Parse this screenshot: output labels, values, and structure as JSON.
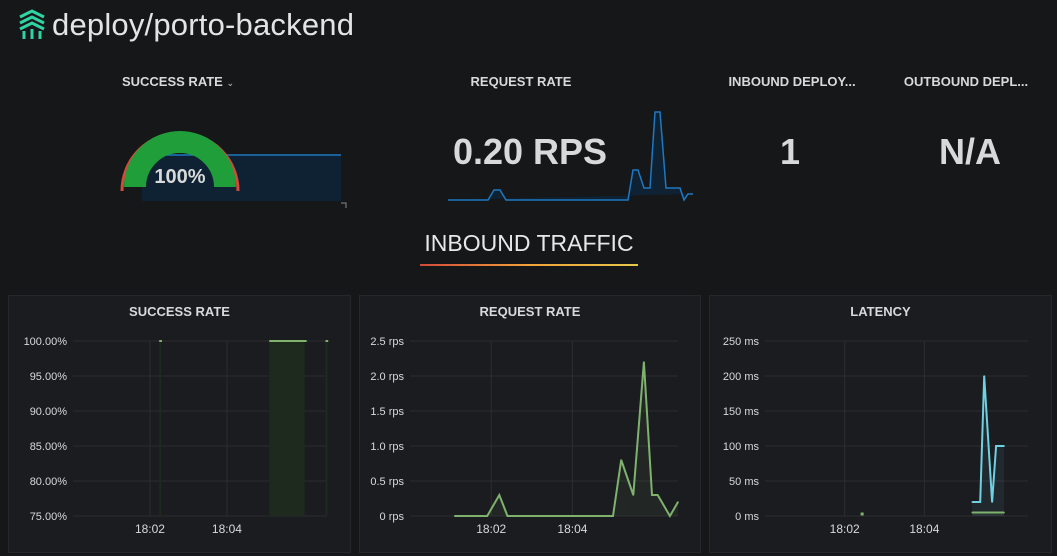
{
  "header": {
    "title": "deploy/porto-backend",
    "logo_icon": "linkerd-logo-icon"
  },
  "stats": {
    "success_rate": {
      "title": "SUCCESS RATE",
      "dropdown_icon": "chevron-down-icon",
      "value": "100%",
      "gauge_fraction": 1.0
    },
    "request_rate": {
      "title": "REQUEST RATE",
      "value": "0.20 RPS"
    },
    "inbound": {
      "title": "INBOUND DEPLOY...",
      "value": "1"
    },
    "outbound": {
      "title": "OUTBOUND DEPL...",
      "value": "N/A"
    }
  },
  "section": {
    "title": "INBOUND TRAFFIC"
  },
  "colors": {
    "accent_green": "#1f9e3a",
    "gauge_red": "#d44a3a",
    "series_green": "#7eb26d",
    "series_cyan": "#6ed0e0",
    "spark_blue": "#1f78c1"
  },
  "chart_data": [
    {
      "type": "line",
      "title": "SUCCESS RATE",
      "y_ticks": [
        "100.00%",
        "95.00%",
        "90.00%",
        "85.00%",
        "80.00%",
        "75.00%"
      ],
      "ylim": [
        75,
        100
      ],
      "x_ticks": [
        "18:02",
        "18:04"
      ],
      "series": [
        {
          "x": [
            1.12,
            1.13,
            2.55,
            3.01,
            3.28,
            3.29
          ],
          "values": [
            100,
            100,
            100,
            100,
            100,
            100
          ]
        }
      ]
    },
    {
      "type": "line",
      "title": "REQUEST RATE",
      "y_ticks": [
        "2.5 rps",
        "2.0 rps",
        "1.5 rps",
        "1.0 rps",
        "0.5 rps",
        "0 rps"
      ],
      "ylim": [
        0,
        2.5
      ],
      "x_ticks": [
        "18:02",
        "18:04"
      ],
      "series": [
        {
          "x": [
            0.55,
            0.95,
            1.1,
            1.2,
            2.35,
            2.5,
            2.6,
            2.75,
            2.88,
            2.98,
            3.05,
            3.2,
            3.3
          ],
          "values": [
            0,
            0,
            0.3,
            0,
            0,
            0,
            0.8,
            0.3,
            2.2,
            0.3,
            0.3,
            0,
            0.2
          ]
        }
      ]
    },
    {
      "type": "line",
      "title": "LATENCY",
      "y_ticks": [
        "250 ms",
        "200 ms",
        "150 ms",
        "100 ms",
        "50 ms",
        "0 ms"
      ],
      "ylim": [
        0,
        250
      ],
      "x_ticks": [
        "18:02",
        "18:04"
      ],
      "series": [
        {
          "x": [
            2.6,
            2.7,
            2.75,
            2.85,
            2.9,
            3.0
          ],
          "values": [
            20,
            20,
            200,
            20,
            100,
            100
          ]
        },
        {
          "x": [
            2.6,
            3.0
          ],
          "values": [
            5,
            5
          ]
        }
      ]
    }
  ]
}
